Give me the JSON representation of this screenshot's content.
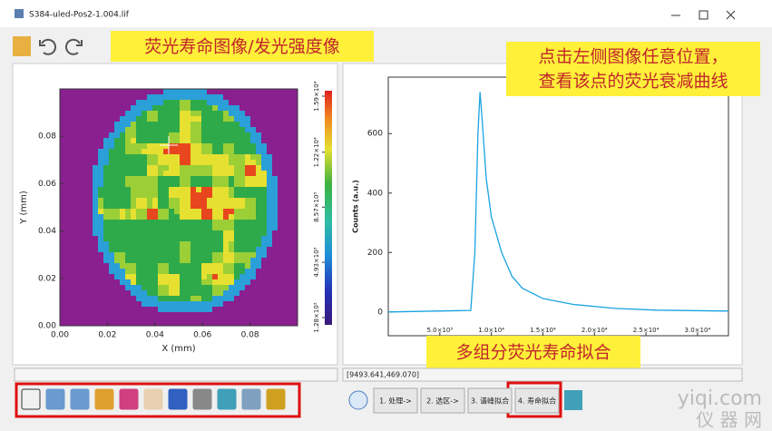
{
  "window": {
    "title": "S384-uled-Pos2-1.004.lif"
  },
  "annotations": [
    "荧光寿命图像/发光强度像",
    "点击左侧图像任意位置，",
    "查看该点的荧光衰减曲线",
    "多组分荧光寿命拟合"
  ],
  "image_plot": {
    "xlabel": "X (mm)",
    "ylabel": "Y (mm)",
    "xlim": [
      0,
      0.1
    ],
    "ylim": [
      0,
      0.1
    ],
    "xticks": [
      {
        "value": 0,
        "label": "0.00"
      },
      {
        "value": 0.02,
        "label": "0.02"
      },
      {
        "value": 0.04,
        "label": "0.04"
      },
      {
        "value": 0.06,
        "label": "0.06"
      },
      {
        "value": 0.08,
        "label": "0.08"
      }
    ],
    "yticks": [
      {
        "value": 0,
        "label": "0.00"
      },
      {
        "value": 0.02,
        "label": "0.02"
      },
      {
        "value": 0.04,
        "label": "0.04"
      },
      {
        "value": 0.06,
        "label": "0.06"
      },
      {
        "value": 0.08,
        "label": "0.08"
      }
    ],
    "clim": [
      800,
      16260
    ],
    "cticks": [
      {
        "value": 1280,
        "label": "1.28×10³"
      },
      {
        "value": 4930,
        "label": "4.93×10³"
      },
      {
        "value": 8570,
        "label": "8.57×10³"
      },
      {
        "value": 12200,
        "label": "1.22×10⁴"
      },
      {
        "value": 15900,
        "label": "1.59×10⁴"
      }
    ]
  },
  "decay_plot": {
    "type": "line",
    "ylabel": "Counts (a.u.)",
    "color": "#1aa3e0",
    "x": [
      0,
      8000,
      8400,
      8700,
      8900,
      9100,
      9500,
      10000,
      11000,
      12000,
      13000,
      15000,
      18000,
      22000,
      26000,
      33000
    ],
    "values": [
      0,
      5,
      200,
      600,
      740,
      650,
      450,
      320,
      200,
      120,
      80,
      45,
      25,
      12,
      6,
      3
    ],
    "xlim": [
      0,
      33000
    ],
    "ylim": [
      -80,
      790
    ],
    "xticks": [
      {
        "value": 5000,
        "label": "5.0×10³"
      },
      {
        "value": 10000,
        "label": "1.0×10⁴"
      },
      {
        "value": 15000,
        "label": "1.5×10⁴"
      },
      {
        "value": 20000,
        "label": "2.0×10⁴"
      },
      {
        "value": 25000,
        "label": "2.5×10⁴"
      },
      {
        "value": 30000,
        "label": "3.0×10⁴"
      }
    ],
    "yticks": [
      0,
      200,
      400,
      600
    ]
  },
  "status": "[9493.641,469.070]",
  "steps": [
    "1. 处理->",
    "2. 选区->",
    "3. 谱峰拟合",
    "4. 寿命拟合"
  ],
  "watermark": [
    "yiqi.com",
    "仪 器 网"
  ]
}
